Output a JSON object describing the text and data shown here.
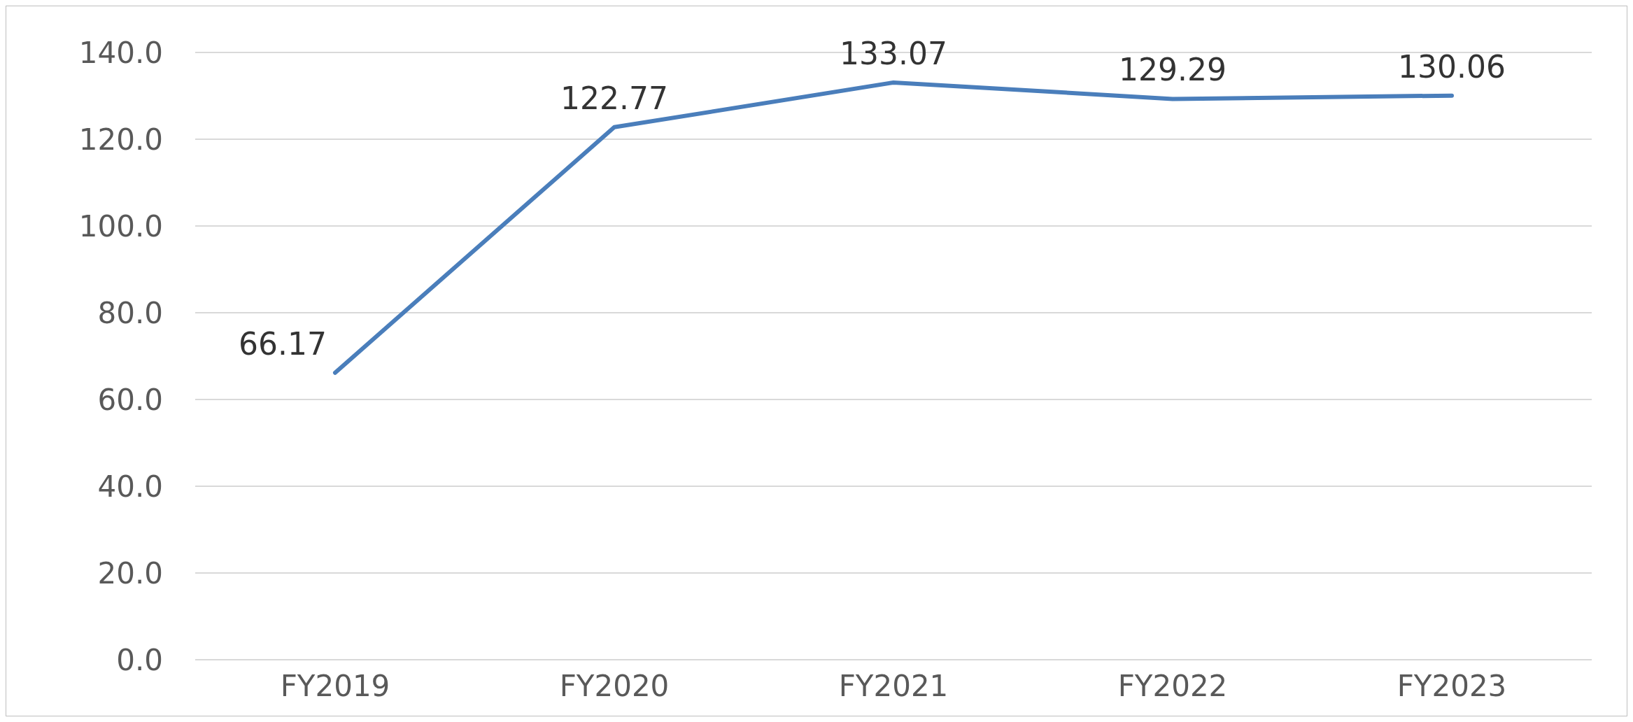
{
  "chart_data": {
    "type": "line",
    "categories": [
      "FY2019",
      "FY2020",
      "FY2021",
      "FY2022",
      "FY2023"
    ],
    "series": [
      {
        "color": "#4a7ebb",
        "values": [
          66.17,
          122.77,
          133.07,
          129.29,
          130.06
        ]
      }
    ],
    "ylim": [
      0,
      140
    ],
    "yticks": [
      {
        "value": 0,
        "label": "0.0"
      },
      {
        "value": 20,
        "label": "20.0"
      },
      {
        "value": 40,
        "label": "40.0"
      },
      {
        "value": 60,
        "label": "60.0"
      },
      {
        "value": 80,
        "label": "80.0"
      },
      {
        "value": 100,
        "label": "100.0"
      },
      {
        "value": 120,
        "label": "120.0"
      },
      {
        "value": 140,
        "label": "140.0"
      }
    ],
    "grid": "y",
    "data_labels": true,
    "marker": "none",
    "line_style": "solid",
    "legend": false
  }
}
